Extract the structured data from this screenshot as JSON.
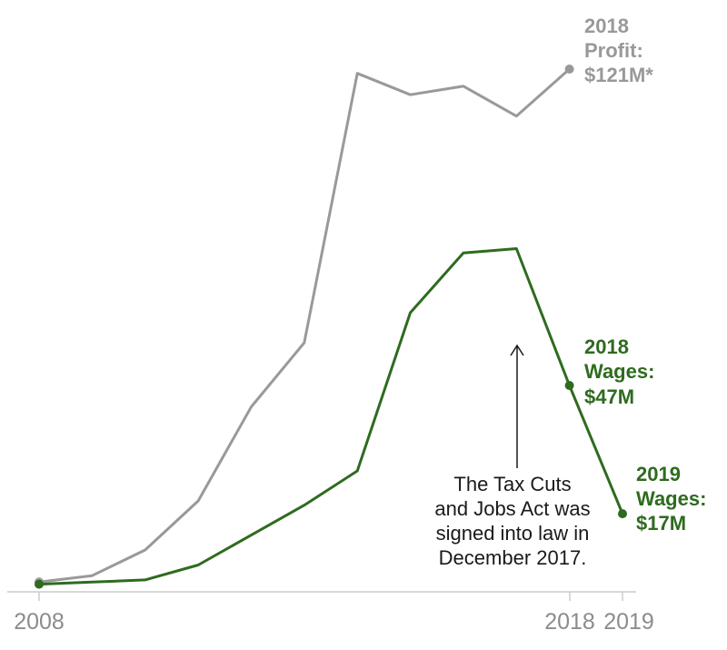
{
  "chart_data": {
    "type": "line",
    "title": "",
    "xlabel": "",
    "ylabel": "",
    "x": [
      2008,
      2009,
      2010,
      2011,
      2012,
      2013,
      2014,
      2015,
      2016,
      2017,
      2018,
      2019
    ],
    "x_tick_labels": [
      "2008",
      "2018",
      "2019"
    ],
    "ylim": [
      0,
      125
    ],
    "grid": false,
    "legend": "none",
    "series": [
      {
        "key": "profit",
        "color": "#999999",
        "values": [
          1,
          2.5,
          8.5,
          20,
          42,
          57,
          120,
          115,
          117,
          110,
          121,
          null
        ],
        "end_label": [
          "2018",
          "Profit:",
          "$121M*"
        ]
      },
      {
        "key": "wages",
        "color": "#2e6b1f",
        "values": [
          0.5,
          1,
          1.5,
          5,
          12,
          19,
          27,
          64,
          78,
          79,
          47,
          17
        ],
        "end_label_2018": [
          "2018",
          "Wages:",
          "$47M"
        ],
        "end_label_2019": [
          "2019",
          "Wages:",
          "$17M"
        ]
      }
    ],
    "annotation": {
      "lines": [
        "The Tax Cuts",
        "and Jobs Act was",
        "signed into law in",
        "December 2017."
      ]
    }
  }
}
